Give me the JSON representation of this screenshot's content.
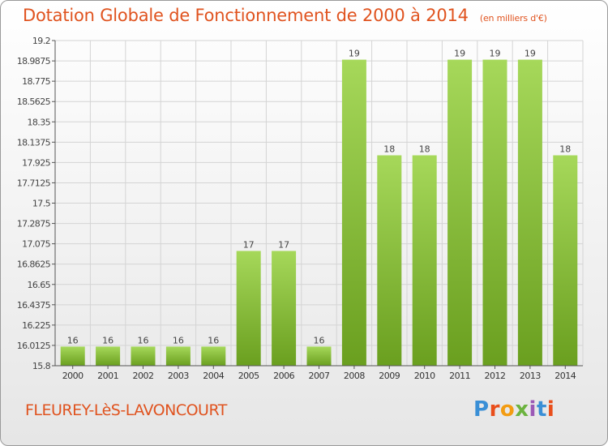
{
  "page": {
    "title": "Dotation Globale de Fonctionnement de 2000 à 2014",
    "subtitle": "(en milliers d'€)",
    "commune": "FLEUREY-LèS-LAVONCOURT",
    "logo": "Proxiti"
  },
  "colors": {
    "title": "#e0531f",
    "bar_light": "#a6d85a",
    "bar_dark": "#6a9f1f",
    "grid": "#d4d4d4"
  },
  "chart_data": {
    "type": "bar",
    "title": "Dotation Globale de Fonctionnement de 2000 à 2014",
    "subtitle": "(en milliers d'€)",
    "xlabel": "",
    "ylabel": "",
    "categories": [
      "2000",
      "2001",
      "2002",
      "2003",
      "2004",
      "2005",
      "2006",
      "2007",
      "2008",
      "2009",
      "2010",
      "2011",
      "2012",
      "2013",
      "2014"
    ],
    "values": [
      16.0,
      16.0,
      16.0,
      16.0,
      16.0,
      17.0,
      17.0,
      16.0,
      19.0,
      18.0,
      18.0,
      19.0,
      19.0,
      19.0,
      18.0
    ],
    "data_labels": [
      "16",
      "16",
      "16",
      "16",
      "16",
      "17",
      "17",
      "16",
      "19",
      "18",
      "18",
      "19",
      "19",
      "19",
      "18"
    ],
    "ylim": [
      15.8,
      19.2
    ],
    "yticks": [
      15.8,
      16.0125,
      16.225,
      16.4375,
      16.65,
      16.8625,
      17.075,
      17.2875,
      17.5,
      17.7125,
      17.925,
      18.1375,
      18.35,
      18.5625,
      18.775,
      18.9875,
      19.2
    ],
    "ytick_labels": [
      "15.8",
      "16.0125",
      "16.225",
      "16.4375",
      "16.65",
      "16.8625",
      "17.075",
      "17.2875",
      "17.5",
      "17.7125",
      "17.925",
      "18.1375",
      "18.35",
      "18.5625",
      "18.775",
      "18.9875",
      "19.2"
    ],
    "grid": true,
    "legend": "none"
  }
}
